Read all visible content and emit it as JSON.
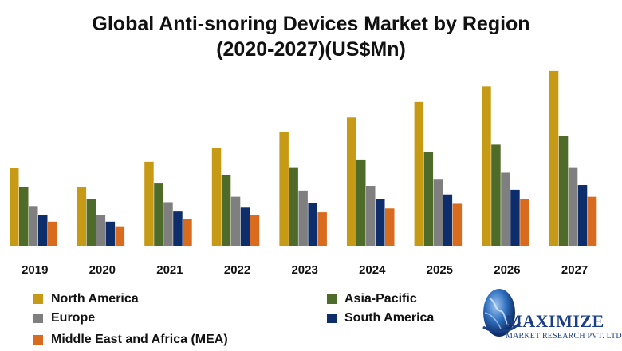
{
  "title_lines": [
    "Global Anti-snoring Devices  Market by Region",
    "(2020-2027)(US$Mn)"
  ],
  "colors": {
    "north_america": "#C79A16",
    "asia_pacific": "#4F6B2A",
    "europe": "#7F7F7F",
    "south_america": "#0E2E6B",
    "mea": "#D86B1E",
    "baseline": "#d9d9d9",
    "logo_text": "#1b3f86"
  },
  "legend": [
    {
      "label": "North America",
      "color": "#C79A16"
    },
    {
      "label": "Asia-Pacific",
      "color": "#4F6B2A"
    },
    {
      "label": "Europe",
      "color": "#7F7F7F"
    },
    {
      "label": "South America",
      "color": "#0E2E6B"
    },
    {
      "label": "Middle East and Africa (MEA)",
      "color": "#D86B1E"
    }
  ],
  "logo": {
    "name": "MAXIMIZE",
    "subtitle": "MARKET RESEARCH PVT. LTD."
  },
  "chart_data": {
    "type": "bar",
    "title": "Global Anti-snoring Devices  Market by Region (2020-2027)(US$Mn)",
    "categories": [
      "2019",
      "2020",
      "2021",
      "2022",
      "2023",
      "2024",
      "2025",
      "2026",
      "2027"
    ],
    "series": [
      {
        "name": "North America",
        "color": "#C79A16",
        "values": [
          100,
          76,
          108,
          126,
          146,
          165,
          185,
          205,
          225
        ]
      },
      {
        "name": "Asia-Pacific",
        "color": "#4F6B2A",
        "values": [
          76,
          60,
          80,
          91,
          101,
          111,
          121,
          130,
          141
        ]
      },
      {
        "name": "Europe",
        "color": "#7F7F7F",
        "values": [
          51,
          40,
          56,
          63,
          71,
          77,
          85,
          94,
          101
        ]
      },
      {
        "name": "South America",
        "color": "#0E2E6B",
        "values": [
          40,
          31,
          44,
          49,
          55,
          60,
          66,
          72,
          78
        ]
      },
      {
        "name": "Middle East and Africa (MEA)",
        "color": "#D86B1E",
        "values": [
          31,
          25,
          34,
          39,
          43,
          48,
          54,
          60,
          63
        ]
      }
    ],
    "ylim": [
      0,
      230
    ],
    "grid": false,
    "legend_position": "bottom"
  }
}
